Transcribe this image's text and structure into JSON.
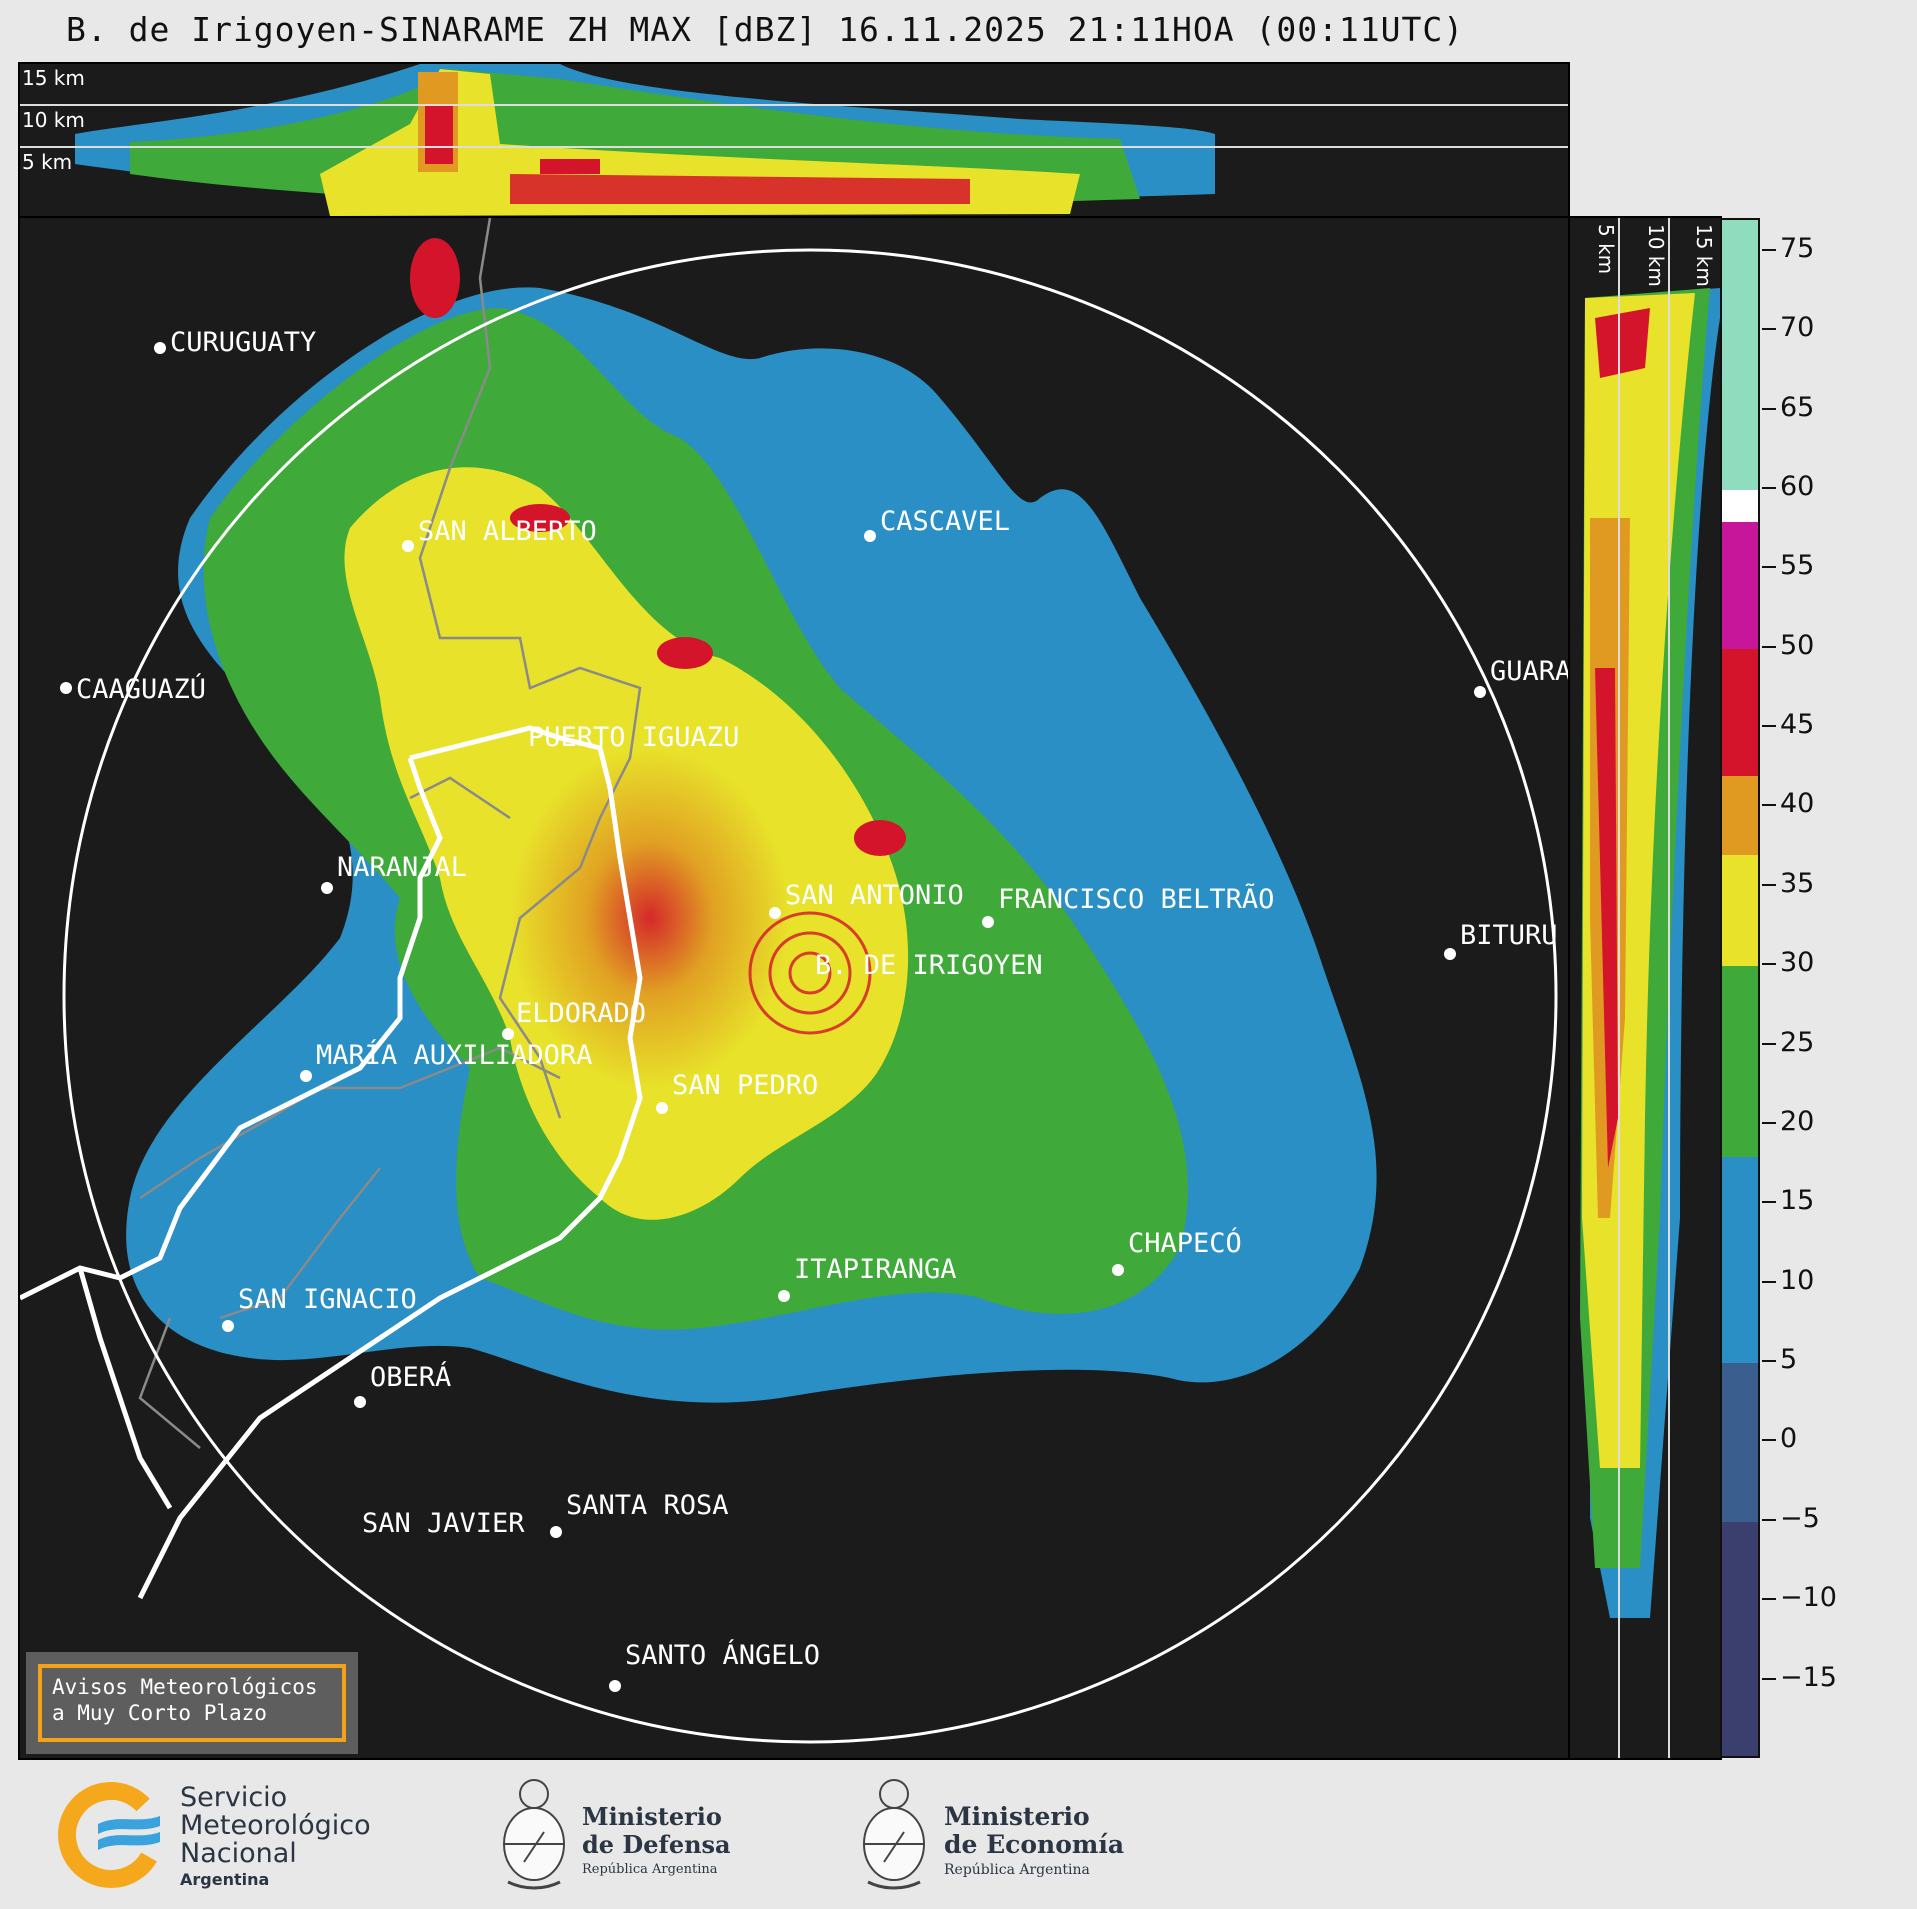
{
  "title": "B. de Irigoyen-SINARAME ZH MAX [dBZ] 16.11.2025 21:11HOA (00:11UTC)",
  "altitude_labels": [
    "15 km",
    "10 km",
    "5 km"
  ],
  "side_altitude_labels": [
    "5 km",
    "10 km",
    "15 km"
  ],
  "cities": [
    {
      "name": "CURUGUATY"
    },
    {
      "name": "SAN ALBERTO"
    },
    {
      "name": "CASCAVEL"
    },
    {
      "name": "CAAGUAZÚ"
    },
    {
      "name": "GUARA"
    },
    {
      "name": "PUERTO IGUAZU"
    },
    {
      "name": "NARANJAL"
    },
    {
      "name": "SAN ANTONIO"
    },
    {
      "name": "FRANCISCO BELTRÃO"
    },
    {
      "name": "BITURU"
    },
    {
      "name": "B. DE IRIGOYEN"
    },
    {
      "name": "ELDORADO"
    },
    {
      "name": "MARÍA AUXILIADORA"
    },
    {
      "name": "SAN PEDRO"
    },
    {
      "name": "CHAPECÓ"
    },
    {
      "name": "ITAPIRANGA"
    },
    {
      "name": "SAN IGNACIO"
    },
    {
      "name": "OBERÁ"
    },
    {
      "name": "SAN JAVIER"
    },
    {
      "name": "SANTA ROSA"
    },
    {
      "name": "SANTO ÁNGELO"
    }
  ],
  "colorbar": {
    "unit": "dBZ",
    "min": -20,
    "max": 77,
    "ticks": [
      "75",
      "70",
      "65",
      "60",
      "55",
      "50",
      "45",
      "40",
      "35",
      "30",
      "25",
      "20",
      "15",
      "10",
      "5",
      "0",
      "−5",
      "−10",
      "−15"
    ],
    "tick_values": [
      75,
      70,
      65,
      60,
      55,
      50,
      45,
      40,
      35,
      30,
      25,
      20,
      15,
      10,
      5,
      0,
      -5,
      -10,
      -15
    ],
    "stops": [
      {
        "from": -20,
        "to": -5,
        "color": "#3a3f6e"
      },
      {
        "from": -5,
        "to": 5,
        "color": "#3a5f8e"
      },
      {
        "from": 5,
        "to": 18,
        "color": "#2a8fc4"
      },
      {
        "from": 18,
        "to": 30,
        "color": "#3fa93a"
      },
      {
        "from": 30,
        "to": 37,
        "color": "#e8e22a"
      },
      {
        "from": 37,
        "to": 42,
        "color": "#e09a22"
      },
      {
        "from": 42,
        "to": 50,
        "color": "#d3142a"
      },
      {
        "from": 50,
        "to": 58,
        "color": "#c8169a"
      },
      {
        "from": 58,
        "to": 60,
        "color": "#ffffff"
      },
      {
        "from": 60,
        "to": 77,
        "color": "#8fdcbf"
      }
    ]
  },
  "notice": {
    "line1": "Avisos Meteorológicos",
    "line2": "a Muy Corto Plazo"
  },
  "logos": {
    "smn": {
      "line1": "Servicio",
      "line2": "Meteorológico",
      "line3": "Nacional",
      "line4": "Argentina"
    },
    "defensa": {
      "line1": "Ministerio",
      "line2": "de Defensa",
      "line3": "República Argentina"
    },
    "economia": {
      "line1": "Ministerio",
      "line2": "de Economía",
      "line3": "República Argentina"
    }
  },
  "colors": {
    "panel_bg": "#1b1b1b",
    "range_ring": "#ffffff",
    "border_white": "#ffffff",
    "border_gray": "#8a8a8a"
  }
}
